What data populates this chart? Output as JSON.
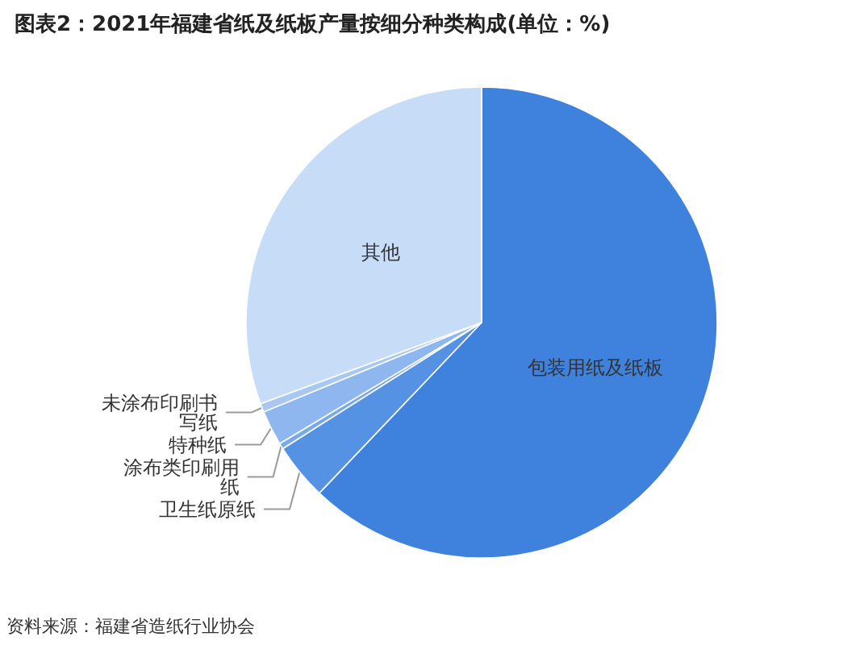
{
  "chart_data": {
    "type": "pie",
    "title": "图表2：2021年福建省纸及纸板产量按细分种类构成(单位：%)",
    "categories": [
      "包装用纸及纸板",
      "卫生纸原纸",
      "涂布类印刷用纸",
      "特种纸",
      "未涂布印刷书写纸",
      "其他"
    ],
    "values": [
      62.1,
      3.9,
      0.4,
      2.4,
      0.6,
      30.6
    ],
    "colors": [
      "#3f82dd",
      "#5592e3",
      "#7aa9ea",
      "#8db7ee",
      "#a8c8f2",
      "#c7ddf7"
    ],
    "annotations": [
      "资料来源：福建省造纸行业协会"
    ]
  }
}
